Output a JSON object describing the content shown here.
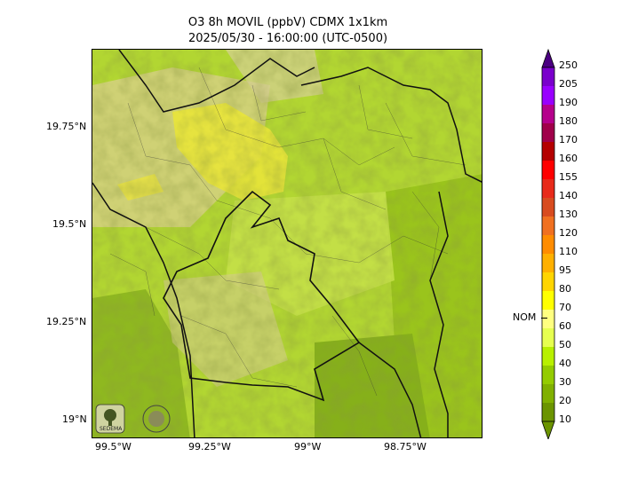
{
  "title": {
    "line1": "O3 8h MOVIL (ppbV) CDMX 1x1km",
    "line2": "2025/05/30 - 16:00:00 (UTC-0500)"
  },
  "axes": {
    "y_ticks": [
      "19.75°N",
      "19.5°N",
      "19.25°N",
      "19°N"
    ],
    "x_ticks": [
      "99.5°W",
      "99.25°W",
      "99°W",
      "98.75°W"
    ]
  },
  "colorbar": {
    "levels": [
      "250",
      "205",
      "190",
      "180",
      "170",
      "160",
      "155",
      "140",
      "130",
      "120",
      "110",
      "95",
      "80",
      "70",
      "60",
      "50",
      "40",
      "30",
      "20",
      "10"
    ],
    "colors_top_to_bottom": [
      "#4b0082",
      "#7a00cc",
      "#9900ff",
      "#b5008c",
      "#a0004a",
      "#b40000",
      "#ff0000",
      "#e82a1a",
      "#d84b1f",
      "#f07020",
      "#ff8c00",
      "#ffb000",
      "#ffd500",
      "#ffff00",
      "#ffff80",
      "#e6ff50",
      "#b8f000",
      "#94cc00",
      "#80b000",
      "#6b9400"
    ],
    "marker_label": "NOM",
    "marker_value": 65
  },
  "logos": {
    "left": "SEDEMA"
  }
}
